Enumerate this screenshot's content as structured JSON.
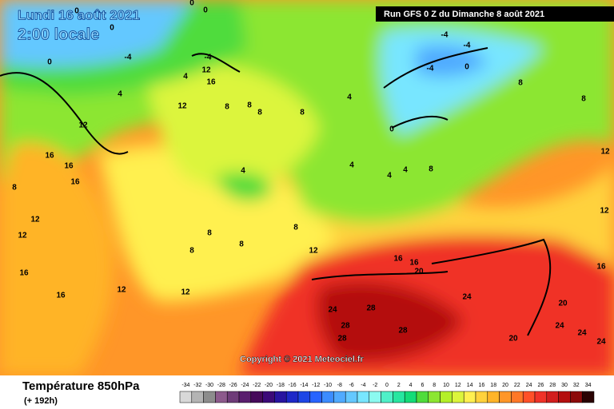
{
  "header": {
    "valid_date": "Lundi 16 août 2021",
    "local_time": "2:00 locale",
    "run": "Run GFS 0 Z du Dimanche 8 août 2021",
    "copyright": "Copyright © 2021 Meteociel.fr"
  },
  "footer": {
    "title": "Température 850hPa",
    "lead": "(+ 192h)"
  },
  "scale": {
    "values": [
      -34,
      -32,
      -30,
      -28,
      -26,
      -24,
      -22,
      -20,
      -18,
      -16,
      -14,
      -12,
      -10,
      -8,
      -6,
      -4,
      -2,
      0,
      2,
      4,
      6,
      8,
      10,
      12,
      14,
      16,
      18,
      20,
      22,
      24,
      26,
      28,
      30,
      32,
      34
    ],
    "colors": [
      "#d8d8d8",
      "#b4b4b4",
      "#8c8c8c",
      "#8c5a8c",
      "#6e3c78",
      "#5a1e6e",
      "#460a5a",
      "#3c0a78",
      "#2814a0",
      "#1e28c8",
      "#1e46e6",
      "#2864ff",
      "#3c8cff",
      "#50aaff",
      "#64c8ff",
      "#78e6ff",
      "#8cfaf0",
      "#50f0c8",
      "#28e6a0",
      "#14dc78",
      "#50dc3c",
      "#8ce632",
      "#b4f028",
      "#dcf53c",
      "#fff050",
      "#ffd23c",
      "#ffb428",
      "#ff9628",
      "#ff7828",
      "#ff5028",
      "#f03228",
      "#d21e1e",
      "#b40f0f",
      "#8c0a0a",
      "#2a0202"
    ]
  },
  "contour_labels": [
    0,
    0,
    0,
    0,
    0,
    -4,
    -4,
    4,
    12,
    16,
    4,
    12,
    12,
    8,
    8,
    8,
    8,
    4,
    16,
    16,
    16,
    8,
    12,
    12,
    16,
    12,
    16,
    12,
    4,
    4,
    4,
    4,
    8,
    8,
    8,
    8,
    8,
    12,
    16,
    16,
    20,
    24,
    28,
    28,
    28,
    28,
    24,
    20,
    24,
    24,
    20,
    24,
    -4,
    -4,
    -4,
    0,
    0,
    8,
    8,
    12,
    12,
    16
  ]
}
